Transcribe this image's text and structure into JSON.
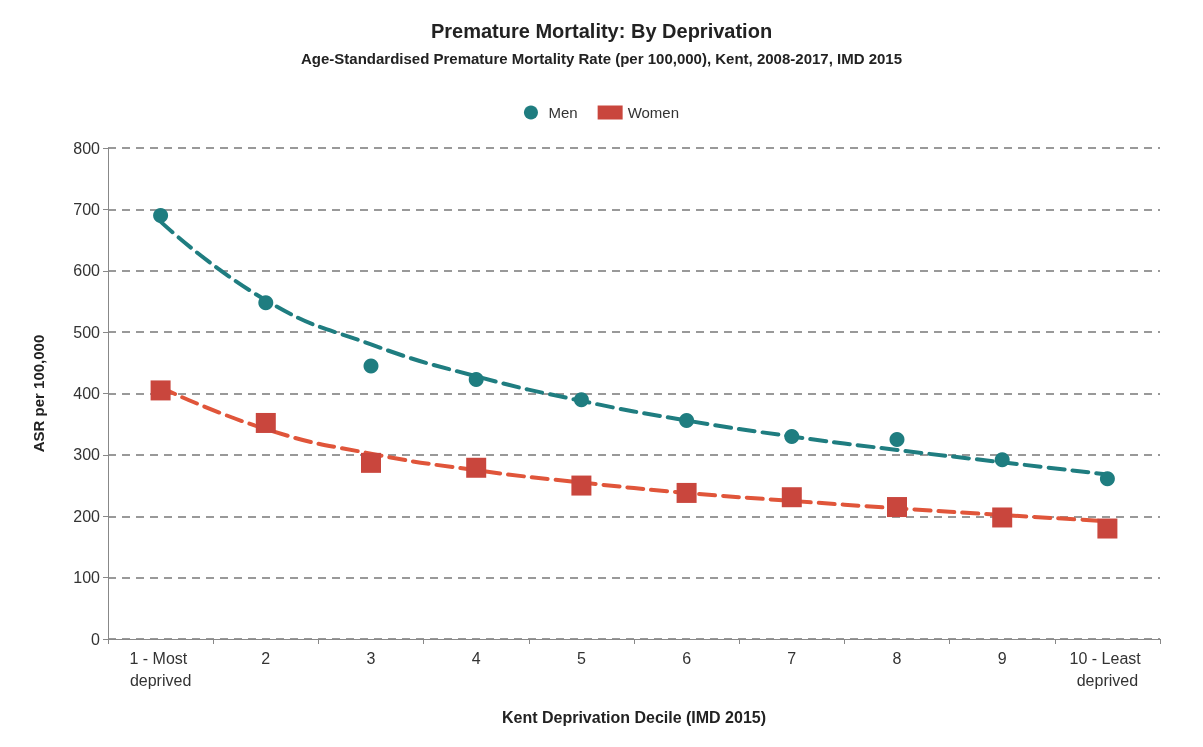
{
  "chart_data": {
    "type": "scatter",
    "title": "Premature Mortality: By Deprivation",
    "subtitle": "Age-Standardised Premature Mortality Rate (per 100,000), Kent, 2008-2017, IMD 2015",
    "xlabel": "Kent Deprivation Decile (IMD 2015)",
    "ylabel": "ASR per 100,000",
    "categories": [
      "1 - Most deprived",
      "2",
      "3",
      "4",
      "5",
      "6",
      "7",
      "8",
      "9",
      "10 - Least deprived"
    ],
    "series": [
      {
        "name": "Men",
        "marker": "circle",
        "color": "#1f7d80",
        "values": [
          690,
          548,
          445,
          423,
          390,
          356,
          330,
          325,
          292,
          261
        ]
      },
      {
        "name": "Women",
        "marker": "square",
        "color": "#c9463d",
        "values": [
          405,
          352,
          287,
          279,
          250,
          238,
          231,
          215,
          198,
          180
        ]
      },
      {
        "type": "line",
        "marker": "none",
        "line_style": "dashed",
        "color": "#1f7d80",
        "values": [
          680,
          552,
          480,
          428,
          388,
          356,
          330,
          308,
          288,
          268
        ]
      },
      {
        "type": "line",
        "marker": "none",
        "line_style": "dashed",
        "color": "#e0553a",
        "values": [
          410,
          342,
          302,
          275,
          255,
          238,
          225,
          213,
          202,
          192
        ]
      }
    ],
    "ylim": [
      0,
      800
    ],
    "yticks": [
      0,
      100,
      200,
      300,
      400,
      500,
      600,
      700,
      800
    ],
    "grid": "y",
    "legend": "top"
  }
}
